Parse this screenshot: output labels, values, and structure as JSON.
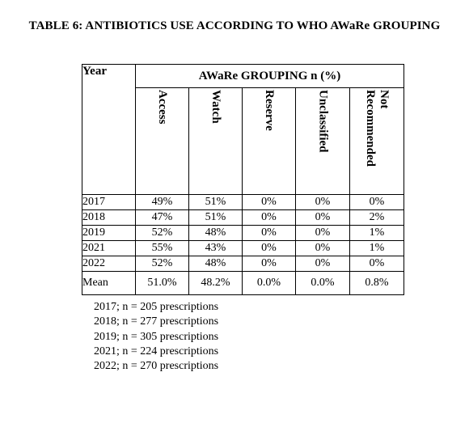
{
  "title": "TABLE 6: ANTIBIOTICS USE ACCORDING TO WHO AWaRe GROUPING",
  "table": {
    "year_header": "Year",
    "group_header": "AWaRe GROUPING n (%)",
    "columns": [
      "Access",
      "Watch",
      "Reserve",
      "Unclassified",
      "Not Recommended"
    ],
    "not_recommended_lines": [
      "Not",
      "Recommended"
    ],
    "rows": [
      {
        "year": "2017",
        "values": [
          "49%",
          "51%",
          "0%",
          "0%",
          "0%"
        ]
      },
      {
        "year": "2018",
        "values": [
          "47%",
          "51%",
          "0%",
          "0%",
          "2%"
        ]
      },
      {
        "year": "2019",
        "values": [
          "52%",
          "48%",
          "0%",
          "0%",
          "1%"
        ]
      },
      {
        "year": "2021",
        "values": [
          "55%",
          "43%",
          "0%",
          "0%",
          "1%"
        ]
      },
      {
        "year": "2022",
        "values": [
          "52%",
          "48%",
          "0%",
          "0%",
          "0%"
        ]
      }
    ],
    "mean": {
      "label": "Mean",
      "values": [
        "51.0%",
        "48.2%",
        "0.0%",
        "0.0%",
        "0.8%"
      ]
    }
  },
  "notes": [
    "2017; n = 205 prescriptions",
    "2018; n = 277 prescriptions",
    "2019; n = 305 prescriptions",
    "2021; n = 224 prescriptions",
    "2022; n = 270 prescriptions"
  ]
}
